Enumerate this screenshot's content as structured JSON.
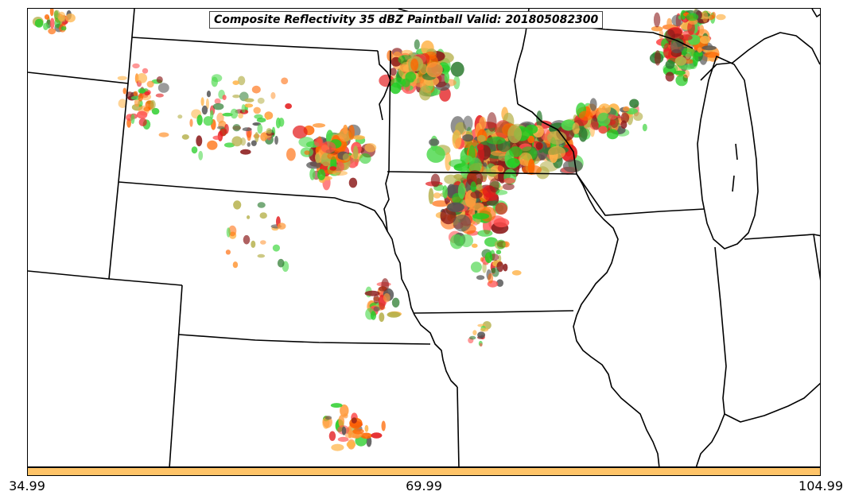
{
  "title": "Composite Reflectivity 35 dBZ Paintball Valid: 201805082300",
  "colorbar": {
    "color": "#ffc468",
    "ticks": [
      "34.99",
      "69.99",
      "104.99"
    ]
  },
  "paintball_colors": [
    "#4dd94d",
    "#2e7d32",
    "#b5b04a",
    "#ff9a3c",
    "#ffb347",
    "#ff4d4d",
    "#e31a1c",
    "#8b1a1a",
    "#555555",
    "#22cc22",
    "#ff6600"
  ]
}
